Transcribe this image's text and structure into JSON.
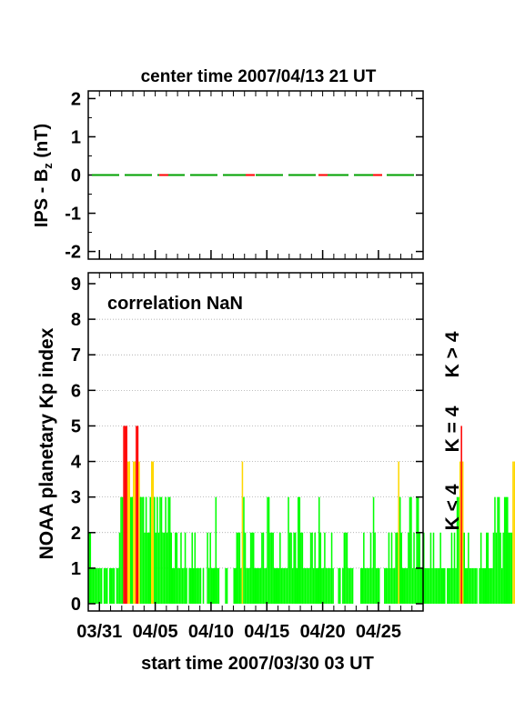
{
  "chart_data": [
    {
      "type": "line",
      "title": "center time 2007/04/13 21 UT",
      "ylabel_main": "IPS - B",
      "ylabel_sub": "z",
      "ylabel_unit": " (nT)",
      "ylim": [
        -2.2,
        2.2
      ],
      "yticks": [
        -2,
        -1,
        0,
        1,
        2
      ],
      "series": [
        {
          "color": "#00a000",
          "values_constant": 0
        },
        {
          "color": "#ff0000",
          "values_constant": 0
        }
      ]
    },
    {
      "type": "bar",
      "annotation": "correlation NaN",
      "ylabel": "NOAA planetary Kp index",
      "xlabel": "start time 2007/03/30 03 UT",
      "xticks": [
        "03/31",
        "04/05",
        "04/10",
        "04/15",
        "04/20",
        "04/25"
      ],
      "xtick_days": [
        1,
        6,
        11,
        16,
        21,
        26
      ],
      "xlim_days": [
        0,
        30
      ],
      "ylim": [
        0,
        9
      ],
      "yticks": [
        0,
        1,
        2,
        3,
        4,
        5,
        6,
        7,
        8,
        9
      ],
      "legend": [
        {
          "label": "K > 4",
          "color": "#ff0000"
        },
        {
          "label": "K = 4",
          "color": "#ffd700"
        },
        {
          "label": "K < 4",
          "color": "#00ff00"
        }
      ],
      "bin_hours": 3,
      "kp_values": [
        2,
        2,
        1,
        1,
        1,
        1,
        1,
        1,
        1,
        1,
        0,
        1,
        1,
        1,
        0,
        1,
        1,
        1,
        1,
        0,
        1,
        1,
        2,
        3,
        3,
        5,
        5,
        5,
        4,
        4,
        3,
        3,
        4,
        4,
        5,
        5,
        4,
        3,
        3,
        3,
        2,
        3,
        2,
        2,
        3,
        4,
        4,
        3,
        2,
        3,
        2,
        3,
        3,
        2,
        2,
        3,
        2,
        3,
        3,
        2,
        1,
        1,
        2,
        2,
        1,
        1,
        2,
        1,
        1,
        2,
        1,
        0,
        1,
        1,
        2,
        1,
        2,
        1,
        1,
        1,
        1,
        0,
        1,
        0,
        0,
        2,
        1,
        2,
        1,
        1,
        1,
        3,
        1,
        1,
        0,
        0,
        0,
        0,
        1,
        1,
        0,
        0,
        0,
        0,
        1,
        1,
        2,
        2,
        2,
        1,
        4,
        3,
        2,
        1,
        1,
        1,
        2,
        2,
        2,
        1,
        1,
        1,
        1,
        1,
        2,
        2,
        1,
        1,
        3,
        3,
        2,
        2,
        2,
        1,
        1,
        1,
        1,
        2,
        1,
        1,
        1,
        1,
        1,
        3,
        2,
        2,
        1,
        2,
        2,
        1,
        3,
        3,
        2,
        2,
        1,
        1,
        1,
        1,
        1,
        2,
        2,
        1,
        2,
        1,
        1,
        3,
        2,
        1,
        1,
        2,
        1,
        1,
        1,
        1,
        2,
        1,
        0,
        0,
        0,
        1,
        1,
        0,
        1,
        2,
        2,
        2,
        1,
        1,
        1,
        1,
        0,
        0,
        0,
        0,
        0,
        1,
        1,
        2,
        1,
        1,
        1,
        1,
        2,
        1,
        3,
        2,
        1,
        1,
        1,
        0,
        0,
        0,
        1,
        1,
        1,
        2,
        1,
        2,
        1,
        1,
        2,
        2,
        4,
        3,
        2,
        1,
        1,
        1,
        1,
        2,
        3,
        3,
        1,
        2,
        1,
        3,
        3,
        2,
        1,
        1,
        2,
        1,
        1,
        1,
        1,
        2,
        1,
        2,
        1,
        1,
        1,
        1,
        2,
        1,
        1,
        1,
        0,
        1,
        1,
        1,
        2,
        1,
        2,
        1,
        3,
        3,
        4,
        5,
        4,
        2,
        1,
        1,
        2,
        1,
        1,
        1,
        1,
        1,
        1,
        0,
        1,
        2,
        1,
        1,
        1,
        2,
        2,
        1,
        1,
        1,
        2,
        3,
        2,
        3,
        3,
        2,
        1,
        2,
        3,
        3,
        3,
        2,
        2,
        2,
        4,
        4,
        4,
        5,
        5,
        4,
        3,
        0,
        0,
        0
      ]
    }
  ]
}
